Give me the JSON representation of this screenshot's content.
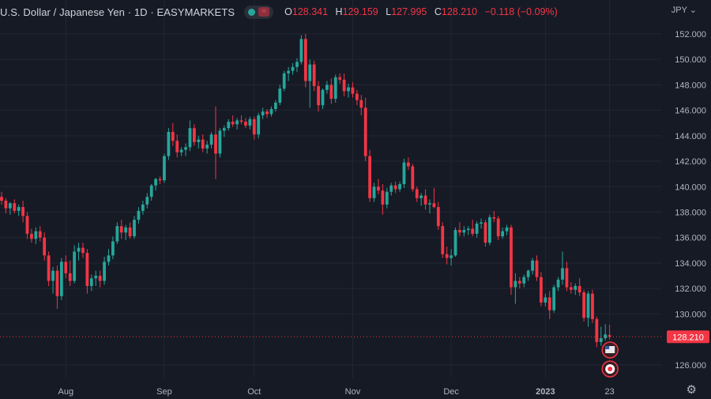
{
  "header": {
    "symbol_title": "U.S. Dollar / Japanese Yen · 1D · EASYMARKETS",
    "status_icon": "market-open-dot-icon",
    "wave_icon": "wave-icon",
    "ohlc": {
      "open_label": "O",
      "open": "128.341",
      "high_label": "H",
      "high": "129.159",
      "low_label": "L",
      "low": "127.995",
      "close_label": "C",
      "close": "128.210",
      "change": "−0.118 (−0.09%)"
    }
  },
  "scale": {
    "currency": "JPY ⌄",
    "settings_icon": "gear-icon"
  },
  "last_price_tag": "128.210",
  "colors": {
    "up": "#26a69a",
    "down": "#f23645",
    "background": "#161a25",
    "grid": "#222633",
    "text": "#b2b5be"
  },
  "chart_data": {
    "type": "candlestick",
    "title": "U.S. Dollar / Japanese Yen · 1D · EASYMARKETS",
    "ylim": [
      125,
      152.8
    ],
    "y_ticks": [
      152,
      150,
      148,
      146,
      144,
      142,
      140,
      138,
      136,
      134,
      132,
      130,
      126
    ],
    "y_tick_labels": [
      "152.000",
      "150.000",
      "148.000",
      "146.000",
      "144.000",
      "142.000",
      "140.000",
      "138.000",
      "136.000",
      "134.000",
      "132.000",
      "130.000",
      "126.000"
    ],
    "x_labels": [
      {
        "label": "Aug",
        "index": 15
      },
      {
        "label": "Sep",
        "index": 38
      },
      {
        "label": "Oct",
        "index": 59
      },
      {
        "label": "Nov",
        "index": 82
      },
      {
        "label": "Dec",
        "index": 105
      },
      {
        "label": "2023",
        "index": 127
      },
      {
        "label": "23",
        "index": 142
      }
    ],
    "candles": [
      [
        139.2,
        139.6,
        138.6,
        138.9
      ],
      [
        138.9,
        139.1,
        137.9,
        138.3
      ],
      [
        138.3,
        138.8,
        137.8,
        138.7
      ],
      [
        138.7,
        139.0,
        137.9,
        138.1
      ],
      [
        138.1,
        138.6,
        137.7,
        138.4
      ],
      [
        138.4,
        138.9,
        137.2,
        137.7
      ],
      [
        137.7,
        138.0,
        135.9,
        136.3
      ],
      [
        136.3,
        136.7,
        135.6,
        135.9
      ],
      [
        135.9,
        136.8,
        135.5,
        136.5
      ],
      [
        136.5,
        136.9,
        135.7,
        136.0
      ],
      [
        136.0,
        136.4,
        134.2,
        134.6
      ],
      [
        134.6,
        134.9,
        132.2,
        132.6
      ],
      [
        132.6,
        133.7,
        131.6,
        133.4
      ],
      [
        133.4,
        133.8,
        130.4,
        131.4
      ],
      [
        131.4,
        134.4,
        131.1,
        134.1
      ],
      [
        134.1,
        134.6,
        132.8,
        133.2
      ],
      [
        133.2,
        134.2,
        132.2,
        132.6
      ],
      [
        132.6,
        135.4,
        132.4,
        134.9
      ],
      [
        134.9,
        135.6,
        134.2,
        135.2
      ],
      [
        135.2,
        135.6,
        134.4,
        134.8
      ],
      [
        134.8,
        135.1,
        131.6,
        132.2
      ],
      [
        132.2,
        133.1,
        131.8,
        132.8
      ],
      [
        132.8,
        133.4,
        132.2,
        133.0
      ],
      [
        133.0,
        133.4,
        132.1,
        132.6
      ],
      [
        132.6,
        134.5,
        132.3,
        134.1
      ],
      [
        134.1,
        135.1,
        133.8,
        134.6
      ],
      [
        134.6,
        136.1,
        134.3,
        135.7
      ],
      [
        135.7,
        137.2,
        135.5,
        136.9
      ],
      [
        136.9,
        137.4,
        135.9,
        136.4
      ],
      [
        136.4,
        137.0,
        135.8,
        136.8
      ],
      [
        136.8,
        137.2,
        135.9,
        136.1
      ],
      [
        136.1,
        137.7,
        135.9,
        137.4
      ],
      [
        137.4,
        138.4,
        137.1,
        138.1
      ],
      [
        138.1,
        138.9,
        137.8,
        138.6
      ],
      [
        138.6,
        139.5,
        138.3,
        139.2
      ],
      [
        139.2,
        140.2,
        138.9,
        140.1
      ],
      [
        140.1,
        140.7,
        139.7,
        140.6
      ],
      [
        140.6,
        140.8,
        140.2,
        140.5
      ],
      [
        140.5,
        142.6,
        140.3,
        142.4
      ],
      [
        142.4,
        144.6,
        142.1,
        144.3
      ],
      [
        144.3,
        145.0,
        143.2,
        143.6
      ],
      [
        143.6,
        144.1,
        142.3,
        142.7
      ],
      [
        142.7,
        143.1,
        142.4,
        142.9
      ],
      [
        142.9,
        143.4,
        142.4,
        143.1
      ],
      [
        143.1,
        145.2,
        142.8,
        144.6
      ],
      [
        144.6,
        144.9,
        143.2,
        143.5
      ],
      [
        143.5,
        144.0,
        143.0,
        143.7
      ],
      [
        143.7,
        144.1,
        142.7,
        143.0
      ],
      [
        143.0,
        143.6,
        142.6,
        143.3
      ],
      [
        143.3,
        144.3,
        143.0,
        144.1
      ],
      [
        144.1,
        146.3,
        140.6,
        142.6
      ],
      [
        142.6,
        144.6,
        142.3,
        144.4
      ],
      [
        144.4,
        144.8,
        143.9,
        144.6
      ],
      [
        144.6,
        145.3,
        144.4,
        145.1
      ],
      [
        145.1,
        145.6,
        144.7,
        144.9
      ],
      [
        144.9,
        145.4,
        144.5,
        145.2
      ],
      [
        145.2,
        145.6,
        144.9,
        145.1
      ],
      [
        145.1,
        145.4,
        144.6,
        144.8
      ],
      [
        144.8,
        145.5,
        144.5,
        145.3
      ],
      [
        145.3,
        145.5,
        143.7,
        144.1
      ],
      [
        144.1,
        145.8,
        143.8,
        145.6
      ],
      [
        145.6,
        146.2,
        145.3,
        145.9
      ],
      [
        145.9,
        146.1,
        145.4,
        145.7
      ],
      [
        145.7,
        146.3,
        145.5,
        146.1
      ],
      [
        146.1,
        146.8,
        145.9,
        146.6
      ],
      [
        146.6,
        148.0,
        146.4,
        147.7
      ],
      [
        147.7,
        149.1,
        147.5,
        148.9
      ],
      [
        148.9,
        149.4,
        148.3,
        149.1
      ],
      [
        149.1,
        149.7,
        148.8,
        149.4
      ],
      [
        149.4,
        150.1,
        149.0,
        149.8
      ],
      [
        149.8,
        151.9,
        149.6,
        151.6
      ],
      [
        151.6,
        152.0,
        147.8,
        148.3
      ],
      [
        148.3,
        150.0,
        146.2,
        149.6
      ],
      [
        149.6,
        149.9,
        147.5,
        147.9
      ],
      [
        147.9,
        148.3,
        145.9,
        146.4
      ],
      [
        146.4,
        147.7,
        146.1,
        147.6
      ],
      [
        147.6,
        148.3,
        147.3,
        148.0
      ],
      [
        148.0,
        148.5,
        146.5,
        146.9
      ],
      [
        146.9,
        148.8,
        146.6,
        148.6
      ],
      [
        148.6,
        148.9,
        148.1,
        148.4
      ],
      [
        148.4,
        148.9,
        147.1,
        147.5
      ],
      [
        147.5,
        148.1,
        147.0,
        147.8
      ],
      [
        147.8,
        148.2,
        147.0,
        147.3
      ],
      [
        147.3,
        147.6,
        146.4,
        146.8
      ],
      [
        146.8,
        147.2,
        145.6,
        146.2
      ],
      [
        146.2,
        147.0,
        142.0,
        142.4
      ],
      [
        142.4,
        142.9,
        138.8,
        139.1
      ],
      [
        139.1,
        140.3,
        138.8,
        140.0
      ],
      [
        140.0,
        140.6,
        139.4,
        139.7
      ],
      [
        139.7,
        140.2,
        137.8,
        138.6
      ],
      [
        138.6,
        139.9,
        138.3,
        139.6
      ],
      [
        139.6,
        140.3,
        139.3,
        140.1
      ],
      [
        140.1,
        140.4,
        139.5,
        139.8
      ],
      [
        139.8,
        140.4,
        139.6,
        140.2
      ],
      [
        140.2,
        142.2,
        139.9,
        141.9
      ],
      [
        141.9,
        142.3,
        141.3,
        141.6
      ],
      [
        141.6,
        141.8,
        139.6,
        139.8
      ],
      [
        139.8,
        140.0,
        138.8,
        139.1
      ],
      [
        139.1,
        139.5,
        138.5,
        139.3
      ],
      [
        139.3,
        139.8,
        138.2,
        138.6
      ],
      [
        138.6,
        139.0,
        137.9,
        138.7
      ],
      [
        138.7,
        139.9,
        138.3,
        138.4
      ],
      [
        138.4,
        138.8,
        136.6,
        136.9
      ],
      [
        136.9,
        137.2,
        134.4,
        134.7
      ],
      [
        134.7,
        135.3,
        133.9,
        134.4
      ],
      [
        134.4,
        135.1,
        133.8,
        134.6
      ],
      [
        134.6,
        136.8,
        134.5,
        136.6
      ],
      [
        136.6,
        137.2,
        136.1,
        136.4
      ],
      [
        136.4,
        136.9,
        136.1,
        136.6
      ],
      [
        136.6,
        136.9,
        136.2,
        136.7
      ],
      [
        136.7,
        137.4,
        136.1,
        136.3
      ],
      [
        136.3,
        137.3,
        136.0,
        137.1
      ],
      [
        137.1,
        137.5,
        136.7,
        137.2
      ],
      [
        137.2,
        137.4,
        135.3,
        135.6
      ],
      [
        135.6,
        137.8,
        135.4,
        137.6
      ],
      [
        137.6,
        138.1,
        137.2,
        137.5
      ],
      [
        137.5,
        137.7,
        135.8,
        136.1
      ],
      [
        136.1,
        136.8,
        135.9,
        136.5
      ],
      [
        136.5,
        137.0,
        136.2,
        136.8
      ],
      [
        136.8,
        137.0,
        131.5,
        132.1
      ],
      [
        132.1,
        133.2,
        130.8,
        132.6
      ],
      [
        132.6,
        132.9,
        132.0,
        132.4
      ],
      [
        132.4,
        133.1,
        132.1,
        132.9
      ],
      [
        132.9,
        133.5,
        132.6,
        133.4
      ],
      [
        133.4,
        134.4,
        133.1,
        134.2
      ],
      [
        134.2,
        134.6,
        132.6,
        132.9
      ],
      [
        132.9,
        133.3,
        130.6,
        130.9
      ],
      [
        130.9,
        131.6,
        130.6,
        131.3
      ],
      [
        131.3,
        131.8,
        129.6,
        130.3
      ],
      [
        130.3,
        132.3,
        130.1,
        132.1
      ],
      [
        132.1,
        132.9,
        131.8,
        132.7
      ],
      [
        132.7,
        134.9,
        132.3,
        133.6
      ],
      [
        133.6,
        134.1,
        131.8,
        132.1
      ],
      [
        132.1,
        132.5,
        131.6,
        131.9
      ],
      [
        131.9,
        132.4,
        131.5,
        132.2
      ],
      [
        132.2,
        132.8,
        131.4,
        131.7
      ],
      [
        131.7,
        131.9,
        129.4,
        129.7
      ],
      [
        129.7,
        131.8,
        129.0,
        131.6
      ],
      [
        131.6,
        131.9,
        129.3,
        129.6
      ],
      [
        129.6,
        129.8,
        127.4,
        127.8
      ],
      [
        127.8,
        129.0,
        127.5,
        128.1
      ],
      [
        128.1,
        129.2,
        127.9,
        128.4
      ],
      [
        128.341,
        129.159,
        127.995,
        128.21
      ]
    ]
  }
}
